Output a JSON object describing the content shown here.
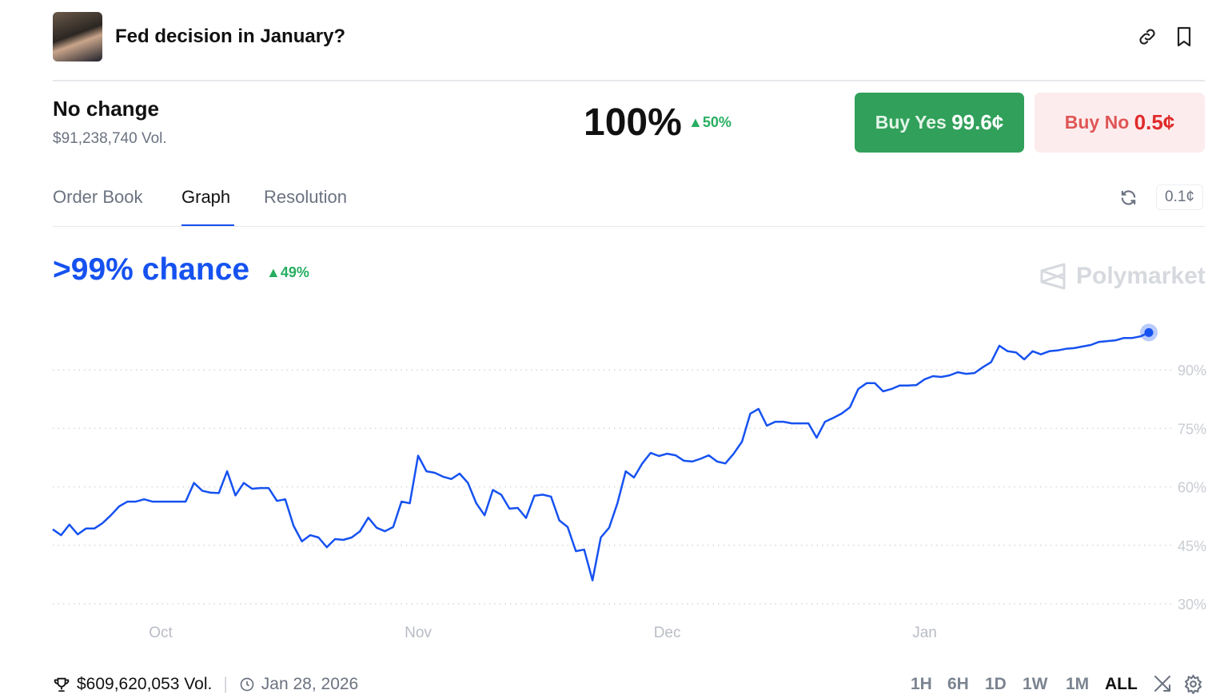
{
  "header": {
    "title": "Fed decision in January?",
    "icons": [
      "link-icon",
      "bookmark-icon"
    ]
  },
  "outcome": {
    "name": "No change",
    "volume": "$91,238,740 Vol.",
    "probability": "100%",
    "change": "50%",
    "buy_yes_label": "Buy Yes",
    "buy_yes_price": "99.6¢",
    "buy_no_label": "Buy No",
    "buy_no_price": "0.5¢"
  },
  "tabs": [
    {
      "label": "Order Book"
    },
    {
      "label": "Graph",
      "active": true
    },
    {
      "label": "Resolution"
    }
  ],
  "tick_size": "0.1¢",
  "graph": {
    "headline": ">99% chance",
    "change": "49%",
    "brand": "Polymarket"
  },
  "colors": {
    "line": "#1652f0",
    "yes": "#31a05a",
    "no": "#e05555",
    "up": "#27ae60"
  },
  "chart_data": {
    "type": "line",
    "x_ticks": [
      "Oct",
      "Nov",
      "Dec",
      "Jan"
    ],
    "y_ticks": [
      "30%",
      "45%",
      "60%",
      "75%",
      "90%"
    ],
    "ylim": [
      30,
      100
    ],
    "grid": true,
    "dates": [
      "2025-09-18",
      "2025-09-19",
      "2025-09-20",
      "2025-09-21",
      "2025-09-22",
      "2025-09-23",
      "2025-09-24",
      "2025-09-25",
      "2025-09-26",
      "2025-09-27",
      "2025-09-28",
      "2025-09-29",
      "2025-09-30",
      "2025-10-01",
      "2025-10-02",
      "2025-10-03",
      "2025-10-04",
      "2025-10-05",
      "2025-10-06",
      "2025-10-07",
      "2025-10-08",
      "2025-10-09",
      "2025-10-10",
      "2025-10-11",
      "2025-10-12",
      "2025-10-13",
      "2025-10-14",
      "2025-10-15",
      "2025-10-16",
      "2025-10-17",
      "2025-10-18",
      "2025-10-19",
      "2025-10-20",
      "2025-10-21",
      "2025-10-22",
      "2025-10-23",
      "2025-10-24",
      "2025-10-25",
      "2025-10-26",
      "2025-10-27",
      "2025-10-28",
      "2025-10-29",
      "2025-10-30",
      "2025-10-31",
      "2025-11-01",
      "2025-11-02",
      "2025-11-03",
      "2025-11-04",
      "2025-11-05",
      "2025-11-06",
      "2025-11-07",
      "2025-11-08",
      "2025-11-09",
      "2025-11-10",
      "2025-11-11",
      "2025-11-12",
      "2025-11-13",
      "2025-11-14",
      "2025-11-15",
      "2025-11-16",
      "2025-11-17",
      "2025-11-18",
      "2025-11-19",
      "2025-11-20",
      "2025-11-21",
      "2025-11-22",
      "2025-11-23",
      "2025-11-24",
      "2025-11-25",
      "2025-11-26",
      "2025-11-27",
      "2025-11-28",
      "2025-11-29",
      "2025-11-30",
      "2025-12-01",
      "2025-12-02",
      "2025-12-03",
      "2025-12-04",
      "2025-12-05",
      "2025-12-06",
      "2025-12-07",
      "2025-12-08",
      "2025-12-09",
      "2025-12-10",
      "2025-12-11",
      "2025-12-12",
      "2025-12-13",
      "2025-12-14",
      "2025-12-15",
      "2025-12-16",
      "2025-12-17",
      "2025-12-18",
      "2025-12-19",
      "2025-12-20",
      "2025-12-21",
      "2025-12-22",
      "2025-12-23",
      "2025-12-24",
      "2025-12-25",
      "2025-12-26",
      "2025-12-27",
      "2025-12-28",
      "2025-12-29",
      "2025-12-30",
      "2025-12-31",
      "2026-01-01",
      "2026-01-02",
      "2026-01-03",
      "2026-01-04",
      "2026-01-05",
      "2026-01-06",
      "2026-01-07",
      "2026-01-08",
      "2026-01-09",
      "2026-01-10",
      "2026-01-11",
      "2026-01-12",
      "2026-01-13",
      "2026-01-14",
      "2026-01-15",
      "2026-01-16",
      "2026-01-17",
      "2026-01-18",
      "2026-01-19",
      "2026-01-20",
      "2026-01-21",
      "2026-01-22",
      "2026-01-23",
      "2026-01-24",
      "2026-01-25",
      "2026-01-26",
      "2026-01-27",
      "2026-01-28"
    ],
    "values": [
      49.1,
      47.6,
      50.3,
      47.8,
      49.3,
      49.3,
      50.7,
      52.7,
      55,
      56.2,
      56.2,
      56.8,
      56.2,
      56.2,
      56.2,
      56.2,
      56.2,
      61,
      59,
      58.5,
      58.4,
      64,
      57.8,
      61,
      59.5,
      59.7,
      59.7,
      56.4,
      56.8,
      50,
      46,
      47.6,
      47,
      44.5,
      46.6,
      46.4,
      47,
      48.6,
      52.1,
      49.5,
      48.6,
      49.7,
      56.2,
      55.8,
      68,
      64,
      63.6,
      62.6,
      62,
      63.4,
      61,
      55.8,
      52.7,
      59.2,
      58,
      54.4,
      54.6,
      52,
      57.7,
      58,
      57.5,
      51.4,
      49.7,
      43.5,
      43.9,
      36,
      47,
      49.5,
      55.8,
      64,
      62.4,
      66,
      68.7,
      67.9,
      68.5,
      68.1,
      66.7,
      66.5,
      67.2,
      68.1,
      66.5,
      66,
      68.5,
      71.6,
      78.8,
      80,
      75.7,
      76.7,
      76.7,
      76.3,
      76.3,
      76.3,
      72.6,
      76.7,
      77.7,
      78.8,
      80.4,
      85.1,
      86.6,
      86.6,
      84.5,
      85.1,
      86,
      86,
      86.1,
      87.6,
      88.4,
      88.2,
      88.6,
      89.4,
      89,
      89.2,
      90.7,
      92,
      96.2,
      94.8,
      94.5,
      92.7,
      94.8,
      94,
      94.8,
      95,
      95.4,
      95.6,
      96,
      96.4,
      97.2,
      97.4,
      97.6,
      98.2,
      98.2,
      98.6,
      99.6
    ]
  },
  "footer": {
    "volume": "$609,620,053 Vol.",
    "end_date": "Jan 28, 2026",
    "ranges": [
      "1H",
      "6H",
      "1D",
      "1W",
      "1M",
      "ALL"
    ],
    "active_range": "ALL"
  }
}
